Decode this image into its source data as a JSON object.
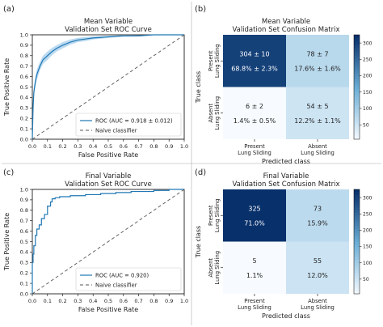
{
  "panels": {
    "a": {
      "label": "(a)"
    },
    "b": {
      "label": "(b)"
    },
    "c": {
      "label": "(c)"
    },
    "d": {
      "label": "(d)"
    }
  },
  "colors": {
    "roc_line": "#1f77b4",
    "roc_band": "#9ecae9",
    "naive_line": "#555555",
    "cm_dark": "#08306b",
    "cm_light": "#f7fbff"
  },
  "chart_data": [
    {
      "panel": "a",
      "type": "line",
      "title": "Mean Variable",
      "subtitle": "Validation Set ROC Curve",
      "xlabel": "False Positive Rate",
      "ylabel": "True Positive Rate",
      "xlim": [
        0,
        1
      ],
      "ylim": [
        0,
        1
      ],
      "xticks": [
        "0.0",
        "0.1",
        "0.2",
        "0.3",
        "0.4",
        "0.5",
        "0.6",
        "0.7",
        "0.8",
        "0.9",
        "1.0"
      ],
      "yticks": [
        "0.0",
        "0.1",
        "0.2",
        "0.3",
        "0.4",
        "0.5",
        "0.6",
        "0.7",
        "0.8",
        "0.9",
        "1.0"
      ],
      "legend_position": "lower-right",
      "series": [
        {
          "name": "ROC (AUC = 0.918 ± 0.012)",
          "style": "solid-band",
          "x": [
            0,
            0.005,
            0.01,
            0.02,
            0.03,
            0.05,
            0.07,
            0.1,
            0.13,
            0.16,
            0.2,
            0.25,
            0.3,
            0.35,
            0.4,
            0.5,
            0.6,
            0.7,
            0.8,
            0.9,
            1.0
          ],
          "y": [
            0,
            0.3,
            0.45,
            0.55,
            0.62,
            0.7,
            0.76,
            0.8,
            0.84,
            0.87,
            0.9,
            0.93,
            0.95,
            0.96,
            0.97,
            0.98,
            0.99,
            0.99,
            1.0,
            1.0,
            1.0
          ],
          "band": [
            0.06,
            0.05,
            0.05,
            0.05,
            0.05,
            0.04,
            0.04,
            0.04,
            0.035,
            0.03,
            0.03,
            0.025,
            0.02,
            0.02,
            0.015,
            0.01,
            0.008,
            0.006,
            0.004,
            0.002,
            0
          ]
        },
        {
          "name": "Naive classifier",
          "style": "dashed",
          "x": [
            0,
            1
          ],
          "y": [
            0,
            1
          ]
        }
      ]
    },
    {
      "panel": "b",
      "type": "heatmap",
      "title": "Mean Variable",
      "subtitle": "Validation Set Confusion Matrix",
      "xlabel": "Predicted class",
      "ylabel": "True class",
      "x_categories": [
        "Present\nLung Sliding",
        "Absent\nLung Sliding"
      ],
      "y_categories": [
        "Present\nLung Sliding",
        "Absent\nLung Sliding"
      ],
      "cells": [
        [
          {
            "count": "304 ± 10",
            "pct": "68.8% ± 2.3%",
            "value": 304
          },
          {
            "count": "78 ± 7",
            "pct": "17.6% ± 1.6%",
            "value": 78
          }
        ],
        [
          {
            "count": "6 ± 2",
            "pct": "1.4% ± 0.5%",
            "value": 6
          },
          {
            "count": "54 ± 5",
            "pct": "12.2% ± 1.1%",
            "value": 54
          }
        ]
      ],
      "colorbar_ticks": [
        50,
        100,
        150,
        200,
        250,
        300
      ],
      "vmin": 6,
      "vmax": 325
    },
    {
      "panel": "c",
      "type": "line",
      "title": "Final Variable",
      "subtitle": "Validation Set ROC Curve",
      "xlabel": "False Positive Rate",
      "ylabel": "True Positive Rate",
      "xlim": [
        0,
        1
      ],
      "ylim": [
        0,
        1
      ],
      "xticks": [
        "0.0",
        "0.1",
        "0.2",
        "0.3",
        "0.4",
        "0.5",
        "0.6",
        "0.7",
        "0.8",
        "0.9",
        "1.0"
      ],
      "yticks": [
        "0.0",
        "0.1",
        "0.2",
        "0.3",
        "0.4",
        "0.5",
        "0.6",
        "0.7",
        "0.8",
        "0.9",
        "1.0"
      ],
      "legend_position": "lower-right",
      "series": [
        {
          "name": "ROC (AUC = 0.920)",
          "style": "step",
          "x": [
            0,
            0,
            0.005,
            0.005,
            0.01,
            0.01,
            0.02,
            0.02,
            0.03,
            0.03,
            0.045,
            0.045,
            0.06,
            0.06,
            0.08,
            0.08,
            0.1,
            0.1,
            0.12,
            0.12,
            0.13,
            0.13,
            0.15,
            0.15,
            0.18,
            0.18,
            0.25,
            0.25,
            0.35,
            0.35,
            0.45,
            0.45,
            0.55,
            0.55,
            0.65,
            0.65,
            0.8,
            0.8,
            0.9,
            0.9,
            1.0
          ],
          "y": [
            0,
            0.3,
            0.3,
            0.38,
            0.38,
            0.46,
            0.46,
            0.56,
            0.56,
            0.62,
            0.62,
            0.66,
            0.66,
            0.72,
            0.72,
            0.76,
            0.76,
            0.84,
            0.84,
            0.88,
            0.88,
            0.91,
            0.91,
            0.92,
            0.92,
            0.93,
            0.93,
            0.94,
            0.94,
            0.95,
            0.95,
            0.96,
            0.96,
            0.97,
            0.97,
            0.98,
            0.98,
            0.99,
            0.99,
            1.0,
            1.0
          ]
        },
        {
          "name": "Naive classifier",
          "style": "dashed",
          "x": [
            0,
            1
          ],
          "y": [
            0,
            1
          ]
        }
      ]
    },
    {
      "panel": "d",
      "type": "heatmap",
      "title": "Final Variable",
      "subtitle": "Validation Set Confusion Matrix",
      "xlabel": "Predicted class",
      "ylabel": "True class",
      "x_categories": [
        "Present\nLung Sliding",
        "Absent\nLung Sliding"
      ],
      "y_categories": [
        "Present\nLung Sliding",
        "Absent\nLung Sliding"
      ],
      "cells": [
        [
          {
            "count": "325",
            "pct": "71.0%",
            "value": 325
          },
          {
            "count": "73",
            "pct": "15.9%",
            "value": 73
          }
        ],
        [
          {
            "count": "5",
            "pct": "1.1%",
            "value": 5
          },
          {
            "count": "55",
            "pct": "12.0%",
            "value": 55
          }
        ]
      ],
      "colorbar_ticks": [
        50,
        100,
        150,
        200,
        250,
        300
      ],
      "vmin": 5,
      "vmax": 325
    }
  ]
}
